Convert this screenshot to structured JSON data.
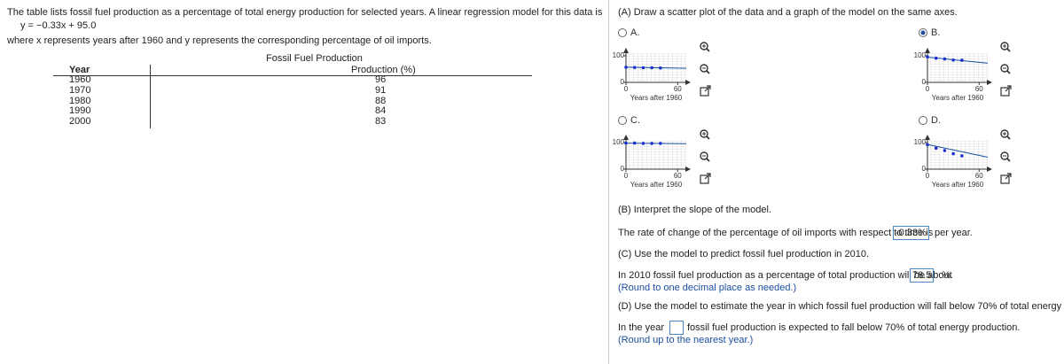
{
  "problem": {
    "intro": "The table lists fossil fuel production as a percentage of total energy production for selected years. A linear regression model for this data is",
    "model": "y = −0.33x + 95.0",
    "definition": "where x represents years after 1960 and y represents the corresponding percentage of oil imports."
  },
  "table": {
    "caption": "Fossil Fuel Production",
    "headers": [
      "Year",
      "Production (%)"
    ],
    "rows": [
      [
        1960,
        96
      ],
      [
        1970,
        91
      ],
      [
        1980,
        88
      ],
      [
        1990,
        84
      ],
      [
        2000,
        83
      ]
    ]
  },
  "part_a": {
    "prompt": "(A) Draw a scatter plot of the data and a graph of the model on the same axes.",
    "graph": {
      "xlim": [
        0,
        70
      ],
      "ylim": [
        0,
        110
      ],
      "xticks": [
        0,
        60
      ],
      "yticks": [
        0,
        100
      ],
      "xlabel": "Years after 1960",
      "x": [
        0,
        10,
        20,
        30,
        40
      ]
    },
    "options": [
      {
        "label": "A.",
        "selected": false,
        "points": [
          57,
          56,
          55,
          55,
          54
        ],
        "line": [
          57,
          53
        ]
      },
      {
        "label": "B.",
        "selected": true,
        "points": [
          96,
          91,
          88,
          84,
          83
        ],
        "line": [
          95,
          72
        ]
      },
      {
        "label": "C.",
        "selected": false,
        "points": [
          98,
          98,
          97,
          97,
          97
        ],
        "line": [
          98,
          96
        ]
      },
      {
        "label": "D.",
        "selected": false,
        "points": [
          92,
          79,
          70,
          58,
          50
        ],
        "line": [
          93,
          45
        ]
      }
    ]
  },
  "part_b": {
    "prompt": "(B) Interpret the slope of the model.",
    "before": "The rate of change of the percentage of oil imports with respect to time is",
    "answer": "-0.33%",
    "after": "per year."
  },
  "part_c": {
    "prompt": "(C) Use the model to predict fossil fuel production in 2010.",
    "before": "In 2010 fossil fuel production as a percentage of total production will be about",
    "answer": "78.5",
    "after": "%.",
    "note": "(Round to one decimal place as needed.)"
  },
  "part_d": {
    "prompt": "(D) Use the model to estimate the year in which fossil fuel production will fall below 70% of total energy production.",
    "before": "In the year",
    "after": "fossil fuel production is expected to fall below 70% of total energy production.",
    "note": "(Round up to the nearest year.)"
  }
}
